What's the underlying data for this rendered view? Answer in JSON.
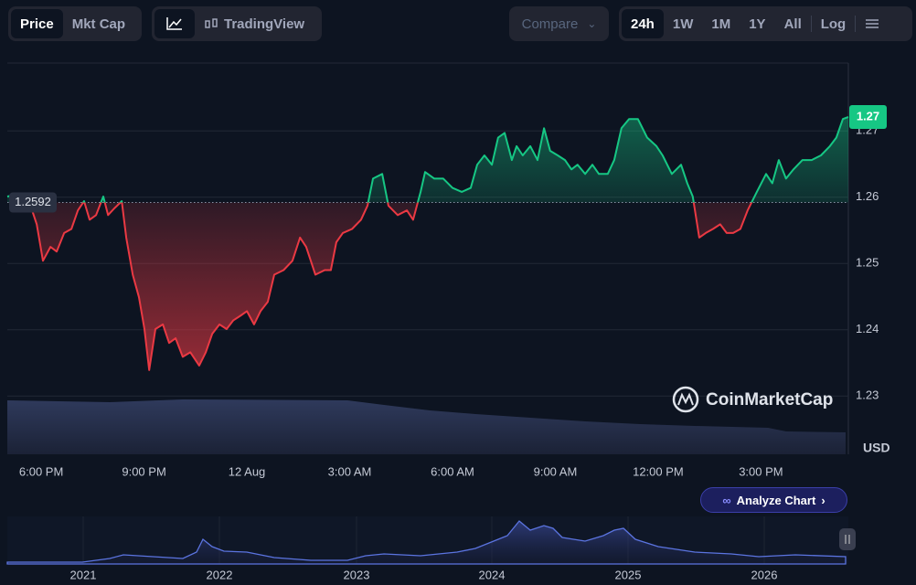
{
  "toolbar": {
    "view": [
      "Price",
      "Mkt Cap"
    ],
    "chart_tool": "TradingView",
    "compare": "Compare",
    "ranges": [
      "24h",
      "1W",
      "1M",
      "1Y",
      "All"
    ],
    "log": "Log"
  },
  "watermark": "CoinMarketCap",
  "analyze": "Analyze Chart",
  "navigator": {
    "labels": [
      "2021",
      "2022",
      "2023",
      "2024",
      "2025",
      "2026"
    ]
  },
  "chart_data": {
    "type": "line",
    "currency": "USD",
    "baseline": 1.2592,
    "last_label": "1.27",
    "up_color": "#16c784",
    "down_color": "#ea3943",
    "xlim": [
      -0.99,
      23.55
    ],
    "xticks": [
      {
        "value": 0,
        "label": "6:00 PM"
      },
      {
        "value": 3,
        "label": "9:00 PM"
      },
      {
        "value": 6,
        "label": "12 Aug"
      },
      {
        "value": 9,
        "label": "3:00 AM"
      },
      {
        "value": 12,
        "label": "6:00 AM"
      },
      {
        "value": 15,
        "label": "9:00 AM"
      },
      {
        "value": 18,
        "label": "12:00 PM"
      },
      {
        "value": 21,
        "label": "3:00 PM"
      }
    ],
    "ylim": [
      1.2212,
      1.2801
    ],
    "yticks": [
      1.23,
      1.24,
      1.25,
      1.26,
      1.27
    ],
    "grid": true,
    "x": [
      -0.99,
      -0.8,
      -0.4,
      -0.13,
      0.05,
      0.27,
      0.45,
      0.67,
      0.88,
      1.07,
      1.25,
      1.41,
      1.6,
      1.81,
      1.95,
      2.13,
      2.35,
      2.48,
      2.67,
      2.85,
      3.01,
      3.15,
      3.33,
      3.55,
      3.73,
      3.92,
      4.13,
      4.35,
      4.61,
      4.8,
      4.99,
      5.2,
      5.41,
      5.6,
      5.81,
      6.0,
      6.21,
      6.4,
      6.61,
      6.8,
      7.07,
      7.33,
      7.55,
      7.73,
      8.0,
      8.27,
      8.45,
      8.61,
      8.8,
      9.07,
      9.33,
      9.52,
      9.68,
      9.95,
      10.13,
      10.4,
      10.67,
      10.85,
      11.07,
      11.2,
      11.47,
      11.73,
      12.0,
      12.27,
      12.53,
      12.72,
      12.93,
      13.15,
      13.33,
      13.52,
      13.73,
      13.87,
      14.05,
      14.27,
      14.48,
      14.67,
      14.85,
      15.07,
      15.28,
      15.47,
      15.65,
      15.87,
      16.08,
      16.27,
      16.53,
      16.72,
      16.93,
      17.15,
      17.41,
      17.68,
      17.95,
      18.13,
      18.4,
      18.67,
      18.85,
      19.01,
      19.2,
      19.39,
      19.6,
      19.81,
      20.0,
      20.19,
      20.4,
      20.61,
      20.88,
      21.15,
      21.33,
      21.52,
      21.73,
      21.95,
      22.21,
      22.48,
      22.75,
      23.01,
      23.2,
      23.39,
      23.55
    ],
    "values": [
      1.2601,
      1.2603,
      1.2601,
      1.2559,
      1.2504,
      1.2525,
      1.2518,
      1.2546,
      1.2552,
      1.258,
      1.2594,
      1.2566,
      1.2573,
      1.2601,
      1.2573,
      1.2583,
      1.2594,
      1.2539,
      1.2483,
      1.2449,
      1.2401,
      1.2339,
      1.2401,
      1.2408,
      1.238,
      1.2387,
      1.2359,
      1.2366,
      1.2346,
      1.2366,
      1.2394,
      1.2408,
      1.2401,
      1.2414,
      1.2421,
      1.2428,
      1.2408,
      1.2428,
      1.2442,
      1.2483,
      1.249,
      1.2504,
      1.2539,
      1.2525,
      1.2483,
      1.249,
      1.249,
      1.2532,
      1.2546,
      1.2552,
      1.2566,
      1.2587,
      1.2628,
      1.2635,
      1.2587,
      1.2573,
      1.258,
      1.2566,
      1.2608,
      1.2638,
      1.2628,
      1.2628,
      1.2614,
      1.2608,
      1.2614,
      1.2649,
      1.2663,
      1.2649,
      1.269,
      1.2697,
      1.2656,
      1.2677,
      1.2663,
      1.2677,
      1.2656,
      1.2704,
      1.267,
      1.2663,
      1.2656,
      1.2642,
      1.2649,
      1.2635,
      1.2649,
      1.2635,
      1.2635,
      1.2656,
      1.2704,
      1.2718,
      1.2718,
      1.269,
      1.2677,
      1.2663,
      1.2635,
      1.2649,
      1.2621,
      1.2601,
      1.2539,
      1.2546,
      1.2552,
      1.2559,
      1.2546,
      1.2546,
      1.2552,
      1.258,
      1.2608,
      1.2635,
      1.2621,
      1.2656,
      1.2628,
      1.2642,
      1.2656,
      1.2656,
      1.2663,
      1.2677,
      1.269,
      1.2718,
      1.2721
    ]
  }
}
